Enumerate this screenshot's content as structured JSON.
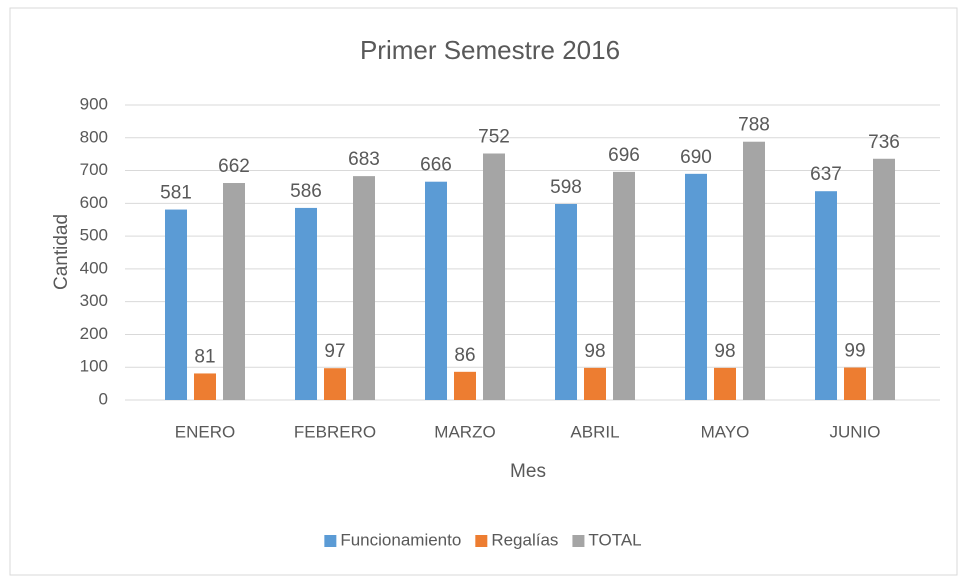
{
  "chart_data": {
    "type": "bar",
    "title": "Primer Semestre 2016",
    "x_label": "Mes",
    "y_label": "Cantidad",
    "categories": [
      "ENERO",
      "FEBRERO",
      "MARZO",
      "ABRIL",
      "MAYO",
      "JUNIO"
    ],
    "series": [
      {
        "name": "Funcionamiento",
        "color": "#5b9bd5",
        "values": [
          581,
          586,
          666,
          598,
          690,
          637
        ]
      },
      {
        "name": "Regalías",
        "color": "#ed7d31",
        "values": [
          81,
          97,
          86,
          98,
          98,
          99
        ]
      },
      {
        "name": "TOTAL",
        "color": "#a5a5a5",
        "values": [
          662,
          683,
          752,
          696,
          788,
          736
        ]
      }
    ],
    "ylim": [
      0,
      900
    ],
    "yticks": [
      0,
      100,
      200,
      300,
      400,
      500,
      600,
      700,
      800,
      900
    ],
    "grid": true,
    "legend": "bottom"
  }
}
